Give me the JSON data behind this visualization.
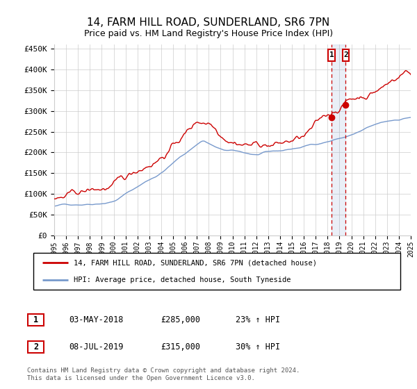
{
  "title": "14, FARM HILL ROAD, SUNDERLAND, SR6 7PN",
  "subtitle": "Price paid vs. HM Land Registry's House Price Index (HPI)",
  "ytick_labels": [
    "£0",
    "£50K",
    "£100K",
    "£150K",
    "£200K",
    "£250K",
    "£300K",
    "£350K",
    "£400K",
    "£450K"
  ],
  "yticks": [
    0,
    50000,
    100000,
    150000,
    200000,
    250000,
    300000,
    350000,
    400000,
    450000
  ],
  "legend_line1": "14, FARM HILL ROAD, SUNDERLAND, SR6 7PN (detached house)",
  "legend_line2": "HPI: Average price, detached house, South Tyneside",
  "sale1_label": "1",
  "sale1_date": "03-MAY-2018",
  "sale1_price": "£285,000",
  "sale1_hpi": "23% ↑ HPI",
  "sale1_x": 2018.34,
  "sale1_y": 285000,
  "sale2_label": "2",
  "sale2_date": "08-JUL-2019",
  "sale2_price": "£315,000",
  "sale2_hpi": "30% ↑ HPI",
  "sale2_x": 2019.52,
  "sale2_y": 315000,
  "footer": "Contains HM Land Registry data © Crown copyright and database right 2024.\nThis data is licensed under the Open Government Licence v3.0.",
  "line_color_red": "#cc0000",
  "line_color_blue": "#7799cc",
  "background_color": "#ffffff",
  "grid_color": "#cccccc",
  "xmin": 1995,
  "xmax": 2025,
  "ymin": 0,
  "ymax": 460000
}
